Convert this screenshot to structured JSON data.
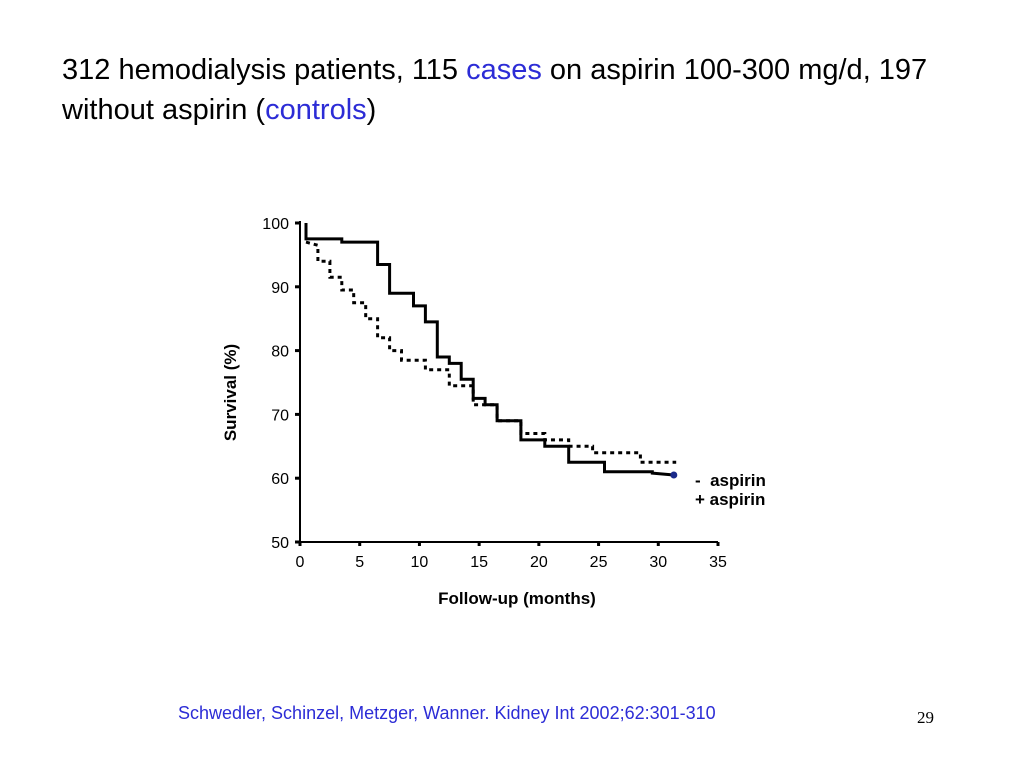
{
  "slide": {
    "title_part1": "312 hemodialysis patients, 115 ",
    "title_cases": "cases",
    "title_part2": " on aspirin 100-300 mg/d, 197 without aspirin (",
    "title_controls": "controls",
    "title_part3": ")",
    "citation": "Schwedler, Schinzel, Metzger, Wanner. Kidney Int 2002;62:301-310",
    "page_number": "29",
    "accent_color": "#2c2cd6"
  },
  "chart_data": {
    "type": "line",
    "title": "",
    "xlabel": "Follow-up (months)",
    "ylabel": "Survival (%)",
    "xlim": [
      0,
      35
    ],
    "ylim": [
      50,
      100
    ],
    "xticks": [
      0,
      5,
      10,
      15,
      20,
      25,
      30,
      35
    ],
    "yticks": [
      50,
      60,
      70,
      80,
      90,
      100
    ],
    "grid": false,
    "legend_position": "right",
    "legend": [
      "-  aspirin",
      "+ aspirin"
    ],
    "series": [
      {
        "name": "+ aspirin",
        "style": "solid",
        "x": [
          0.5,
          0.5,
          3.5,
          3.5,
          6.5,
          6.5,
          7.5,
          7.5,
          9.5,
          9.5,
          10.5,
          10.5,
          11.5,
          11.5,
          12.5,
          12.5,
          13.5,
          13.5,
          14.5,
          14.5,
          15.5,
          15.5,
          16.5,
          16.5,
          18.5,
          18.5,
          20.5,
          20.5,
          22.5,
          22.5,
          25.5,
          25.5,
          29.5,
          29.5,
          31.3
        ],
        "y": [
          100,
          97.5,
          97.5,
          97,
          97,
          93.5,
          93.5,
          89,
          89,
          87,
          87,
          84.5,
          84.5,
          79,
          79,
          78,
          78,
          75.5,
          75.5,
          72.5,
          72.5,
          71.5,
          71.5,
          69,
          69,
          66,
          66,
          65,
          65,
          62.5,
          62.5,
          61,
          61,
          60.8,
          60.5
        ]
      },
      {
        "name": "-  aspirin",
        "style": "dotted",
        "x": [
          0.5,
          0.5,
          1.5,
          1.5,
          2.5,
          2.5,
          3.5,
          3.5,
          4.5,
          4.5,
          5.5,
          5.5,
          6.5,
          6.5,
          7.5,
          7.5,
          8.5,
          8.5,
          10.5,
          10.5,
          12.5,
          12.5,
          14.5,
          14.5,
          16.5,
          16.5,
          18.5,
          18.5,
          20.5,
          20.5,
          22.5,
          22.5,
          24.5,
          24.5,
          28.5,
          28.5,
          31.5
        ],
        "y": [
          97,
          97,
          96.5,
          94,
          94,
          91.5,
          91.5,
          89.5,
          89.5,
          87.5,
          87.5,
          85,
          85,
          82,
          82,
          80,
          80,
          78.5,
          78.5,
          77,
          77,
          74.5,
          74.5,
          71.5,
          71.5,
          69,
          69,
          67,
          67,
          66,
          66,
          65,
          65,
          64,
          64,
          62.5,
          62.5
        ]
      }
    ]
  }
}
